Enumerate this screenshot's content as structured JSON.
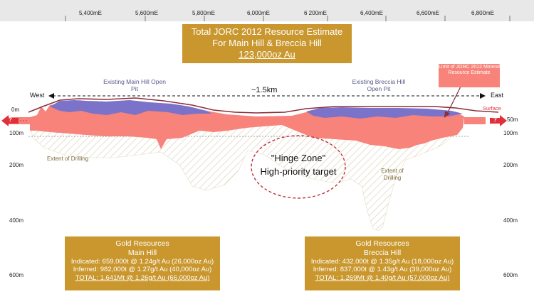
{
  "easting_ticks": [
    "5,400mE",
    "5,600mE",
    "5,800mE",
    "6,000mE",
    "6 200mE",
    "6,400mE",
    "6,600mE",
    "6,800mE"
  ],
  "depth_left": [
    "0m",
    "100m",
    "200m",
    "400m",
    "600m"
  ],
  "depth_right": [
    "50m",
    "100m",
    "200m",
    "400m",
    "600m"
  ],
  "title": {
    "line1": "Total JORC 2012 Resource Estimate",
    "line2": "For Main Hill & Breccia Hill",
    "line3": "123,000oz Au"
  },
  "pits": {
    "main": "Existing Main Hill Open Pit",
    "breccia": "Existing Breccia Hill Open Pit"
  },
  "limit_label": "Limit of JORC 2012 Mineral Resource Estimate",
  "west": "West",
  "east": "East",
  "distance": "~1.5km",
  "surface": "Surface",
  "drilling_left": "Extent of Drilling",
  "drilling_right": "Extent of Drilling",
  "hinge": {
    "line1": "\"Hinge Zone\"",
    "line2": "High-priority target"
  },
  "question_mark": "?",
  "main_hill": {
    "heading": "Gold Resources",
    "name": "Main Hill",
    "indicated": "Indicated: 659,000t @ 1.24g/t Au (26,000oz Au)",
    "inferred": "Inferred: 982,000t @ 1.27g/t Au (40,000oz Au)",
    "total": "TOTAL: 1.641Mt @ 1.26g/t Au (66,000oz Au)"
  },
  "breccia_hill": {
    "heading": "Gold Resources",
    "name": "Breccia Hill",
    "indicated": "Indicated: 432,000t @ 1.35g/t Au (18,000oz Au)",
    "inferred": "Inferred: 837,000t @ 1.43g/t Au (39,000oz Au)",
    "total": "TOTAL: 1.269Mt @ 1.40g/t Au (57,000oz Au)"
  },
  "colors": {
    "gold_box": "#c9972e",
    "mineralisation": "#f7837a",
    "pit": "#7b73c9",
    "surface": "#8b2f3a",
    "arrow": "#e0303a",
    "hatch": "#d8cfb6"
  }
}
